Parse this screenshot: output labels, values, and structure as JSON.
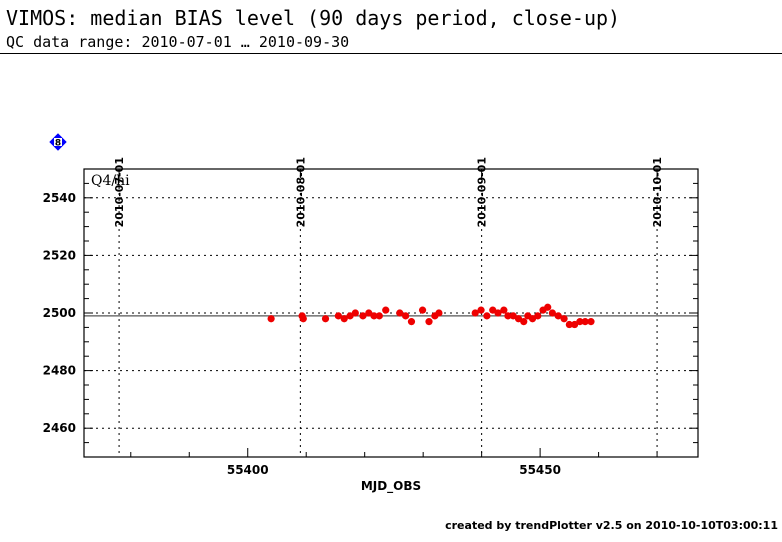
{
  "header": {
    "title": "VIMOS: median BIAS level (90 days period, close-up)",
    "subtitle": "QC data range: 2010-07-01 … 2010-09-30"
  },
  "footer": {
    "text": "created by trendPlotter v2.5 on 2010-10-10T03:00:11"
  },
  "marker": {
    "label": "8",
    "color": "#0000ff"
  },
  "chart_data": {
    "type": "scatter",
    "panel_label": "Q4/hi",
    "xlabel": "MJD_OBS",
    "ylabel": "",
    "xlim": [
      55372,
      55477
    ],
    "ylim": [
      2450,
      2550
    ],
    "x_ticks": [
      55400,
      55450
    ],
    "y_ticks": [
      2460,
      2480,
      2500,
      2520,
      2540
    ],
    "date_ticks": [
      {
        "label": "2010-07-01",
        "mjd": 55378
      },
      {
        "label": "2010-08-01",
        "mjd": 55409
      },
      {
        "label": "2010-09-01",
        "mjd": 55440
      },
      {
        "label": "2010-10-01",
        "mjd": 55470
      }
    ],
    "reference_line": 2499,
    "grid": true,
    "point_color": "#ee0000",
    "series": [
      {
        "x": [
          55404,
          55409.3,
          55409.5,
          55413.3,
          55415.5,
          55416.5,
          55417.5,
          55418.4,
          55419.7,
          55420.7,
          55421.6,
          55422.5,
          55423.6,
          55426,
          55427,
          55428,
          55429.9,
          55431,
          55432,
          55432.7,
          55438.9,
          55439.9,
          55440.9,
          55441.9,
          55442.8,
          55443.8,
          55444.5,
          55445.4,
          55446.3,
          55447.2,
          55447.9,
          55448.7,
          55449.6,
          55450.5,
          55451.3,
          55452.1,
          55453.1,
          55454.1,
          55455,
          55455.9,
          55456.8,
          55457.7,
          55458.7
        ],
        "y": [
          2498,
          2499,
          2498,
          2498,
          2499,
          2498,
          2499,
          2500,
          2499,
          2500,
          2499,
          2499,
          2501,
          2500,
          2499,
          2497,
          2501,
          2497,
          2499,
          2500,
          2500,
          2501,
          2499,
          2501,
          2500,
          2501,
          2499,
          2499,
          2498,
          2497,
          2499,
          2498,
          2499,
          2501,
          2502,
          2500,
          2499,
          2498,
          2496,
          2496,
          2497,
          2497,
          2497
        ]
      }
    ]
  }
}
